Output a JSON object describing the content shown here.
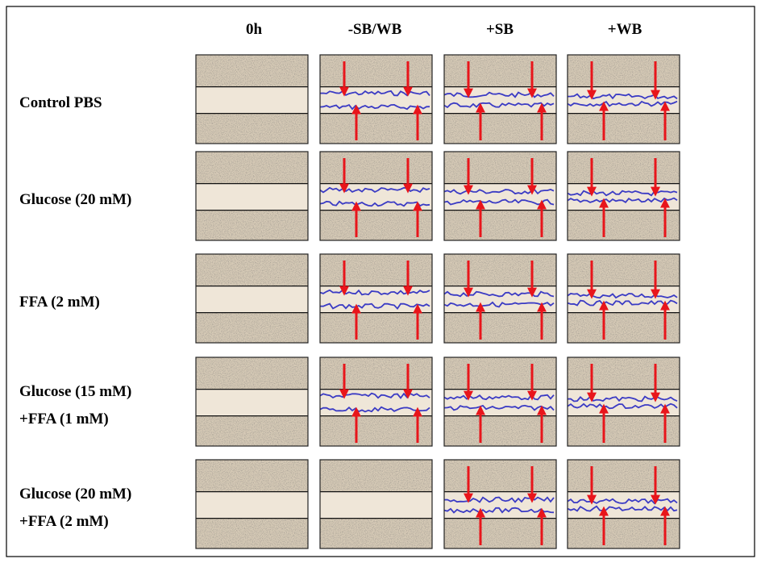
{
  "columns": [
    "0h",
    "-SB/WB",
    "+SB",
    "+WB"
  ],
  "rows": [
    {
      "label": [
        "Control PBS"
      ]
    },
    {
      "label": [
        "Glucose (20 mM)"
      ]
    },
    {
      "label": [
        "FFA  (2 mM)"
      ]
    },
    {
      "label": [
        "Glucose (15 mM)",
        "+FFA (1 mM)"
      ]
    },
    {
      "label": [
        "Glucose (20 mM)",
        "+FFA (2 mM)"
      ]
    }
  ]
}
